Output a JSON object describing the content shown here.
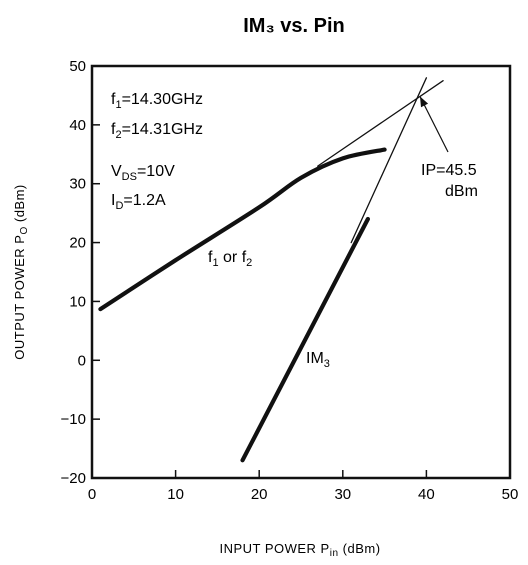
{
  "chart_data": {
    "type": "line",
    "title": "IM₃ vs. Pin",
    "xlabel": {
      "main": "INPUT POWER P",
      "sub": "in",
      "unit": " (dBm)"
    },
    "ylabel": {
      "main": "OUTPUT POWER P",
      "sub": "O",
      "unit": " (dBm)"
    },
    "xlim": [
      0,
      50
    ],
    "ylim": [
      -20,
      50
    ],
    "x_ticks": [
      {
        "value": 0,
        "label": "0"
      },
      {
        "value": 10,
        "label": "10"
      },
      {
        "value": 20,
        "label": "20"
      },
      {
        "value": 30,
        "label": "30"
      },
      {
        "value": 40,
        "label": "40"
      },
      {
        "value": 50,
        "label": "50"
      }
    ],
    "y_ticks": [
      {
        "value": -20,
        "label": "−20"
      },
      {
        "value": -10,
        "label": "−10"
      },
      {
        "value": 0,
        "label": "0"
      },
      {
        "value": 10,
        "label": "10"
      },
      {
        "value": 20,
        "label": "20"
      },
      {
        "value": 30,
        "label": "30"
      },
      {
        "value": 40,
        "label": "40"
      },
      {
        "value": 50,
        "label": "50"
      }
    ],
    "grid": false,
    "series": [
      {
        "label": {
          "main": "f",
          "sub": "1",
          "mid": " or f",
          "sub2": "2"
        },
        "style": "thick",
        "points": [
          [
            1,
            8.7
          ],
          [
            10,
            17
          ],
          [
            20,
            26
          ],
          [
            25,
            31
          ],
          [
            30,
            34.3
          ],
          [
            35,
            35.8
          ]
        ]
      },
      {
        "label": {
          "main": "IM",
          "sub": "3"
        },
        "style": "thick",
        "points": [
          [
            18,
            -17
          ],
          [
            33,
            24
          ]
        ]
      },
      {
        "style": "thin",
        "points": [
          [
            27,
            33
          ],
          [
            42,
            47.5
          ]
        ]
      },
      {
        "style": "thin",
        "points": [
          [
            31,
            20
          ],
          [
            40,
            48
          ]
        ]
      }
    ],
    "intercept": {
      "x": 39,
      "y": 45.5,
      "label_line1": "IP=45.5",
      "label_line2": "dBm"
    },
    "conditions": [
      {
        "main": "f",
        "sub": "1",
        "rest": "=14.30GHz"
      },
      {
        "main": "f",
        "sub": "2",
        "rest": "=14.31GHz"
      },
      {
        "main": "V",
        "sub": "DS",
        "rest": "=10V"
      },
      {
        "main": "I",
        "sub": "D",
        "rest": "=1.2A"
      }
    ]
  }
}
